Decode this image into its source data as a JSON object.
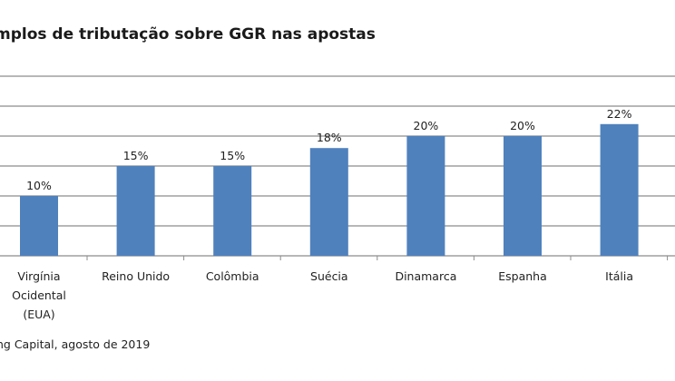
{
  "chart_data": {
    "type": "bar",
    "title": "mplos de tributação sobre GGR nas apostas",
    "source": "ng Capital, agosto de 2019",
    "categories": [
      [
        "Virgínia",
        "Ocidental",
        "(EUA)"
      ],
      [
        "Reino Unido"
      ],
      [
        "Colômbia"
      ],
      [
        "Suécia"
      ],
      [
        "Dinamarca"
      ],
      [
        "Espanha"
      ],
      [
        "Itália"
      ]
    ],
    "values": [
      10,
      15,
      15,
      18,
      20,
      20,
      22
    ],
    "data_labels": [
      "10%",
      "15%",
      "15%",
      "18%",
      "20%",
      "20%",
      "22%"
    ],
    "ylim": [
      0,
      30
    ],
    "y_grid_step": 5,
    "grid": true,
    "bar_color": "#4f81bd",
    "grid_color": "#8c8c8c"
  }
}
